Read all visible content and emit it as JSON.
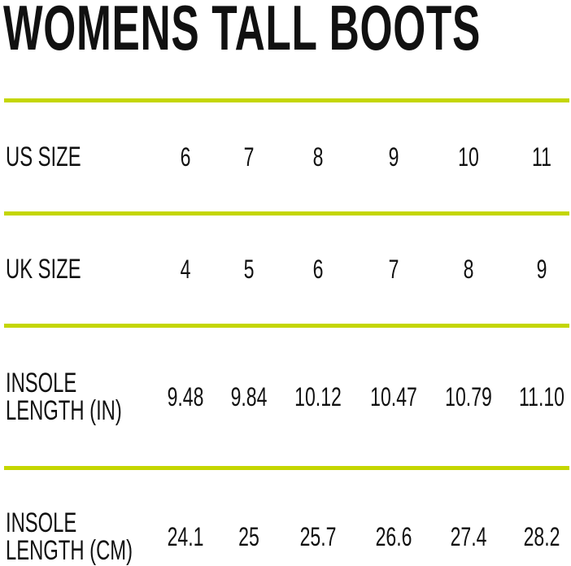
{
  "title": "WOMENS TALL BOOTS",
  "accent_color": "#c4d600",
  "rows": [
    {
      "label": [
        "US SIZE"
      ],
      "values": [
        "6",
        "7",
        "8",
        "9",
        "10",
        "11"
      ]
    },
    {
      "label": [
        "UK SIZE"
      ],
      "values": [
        "4",
        "5",
        "6",
        "7",
        "8",
        "9"
      ]
    },
    {
      "label": [
        "INSOLE",
        "LENGTH (IN)"
      ],
      "values": [
        "9.48",
        "9.84",
        "10.12",
        "10.47",
        "10.79",
        "11.10"
      ]
    },
    {
      "label": [
        "INSOLE",
        "LENGTH (CM)"
      ],
      "values": [
        "24.1",
        "25",
        "25.7",
        "26.6",
        "27.4",
        "28.2"
      ]
    }
  ]
}
